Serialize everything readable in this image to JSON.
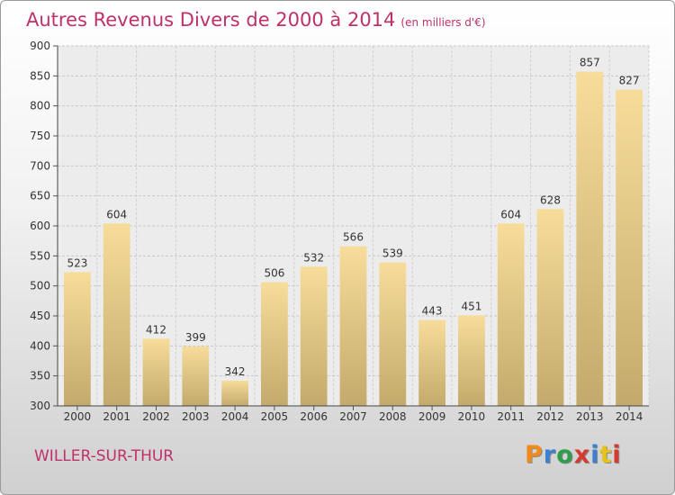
{
  "header": {
    "title": "Autres Revenus Divers de 2000 à 2014",
    "unit": "(en milliers d'€)"
  },
  "footer": {
    "commune": "WILLER-SUR-THUR",
    "brand": "Proxiti",
    "brand_colors": [
      "#f08a1c",
      "#3d7fd1",
      "#2e9e4c",
      "#d63a2e",
      "#3d7fd1",
      "#e6c21a",
      "#d63a2e"
    ]
  },
  "chart_data": {
    "type": "bar",
    "title": "Autres Revenus Divers de 2000 à 2014",
    "categories": [
      "2000",
      "2001",
      "2002",
      "2003",
      "2004",
      "2005",
      "2006",
      "2007",
      "2008",
      "2009",
      "2010",
      "2011",
      "2012",
      "2013",
      "2014"
    ],
    "values": [
      523,
      604,
      412,
      399,
      342,
      506,
      532,
      566,
      539,
      443,
      451,
      604,
      628,
      857,
      827
    ],
    "ylim": [
      300,
      900
    ],
    "yticks": [
      300,
      350,
      400,
      450,
      500,
      550,
      600,
      650,
      700,
      750,
      800,
      850,
      900
    ],
    "grid": true,
    "bar_color_top": "#f7dc9a",
    "bar_color_bottom": "#c3aa6c",
    "xlabel": "",
    "ylabel": ""
  }
}
